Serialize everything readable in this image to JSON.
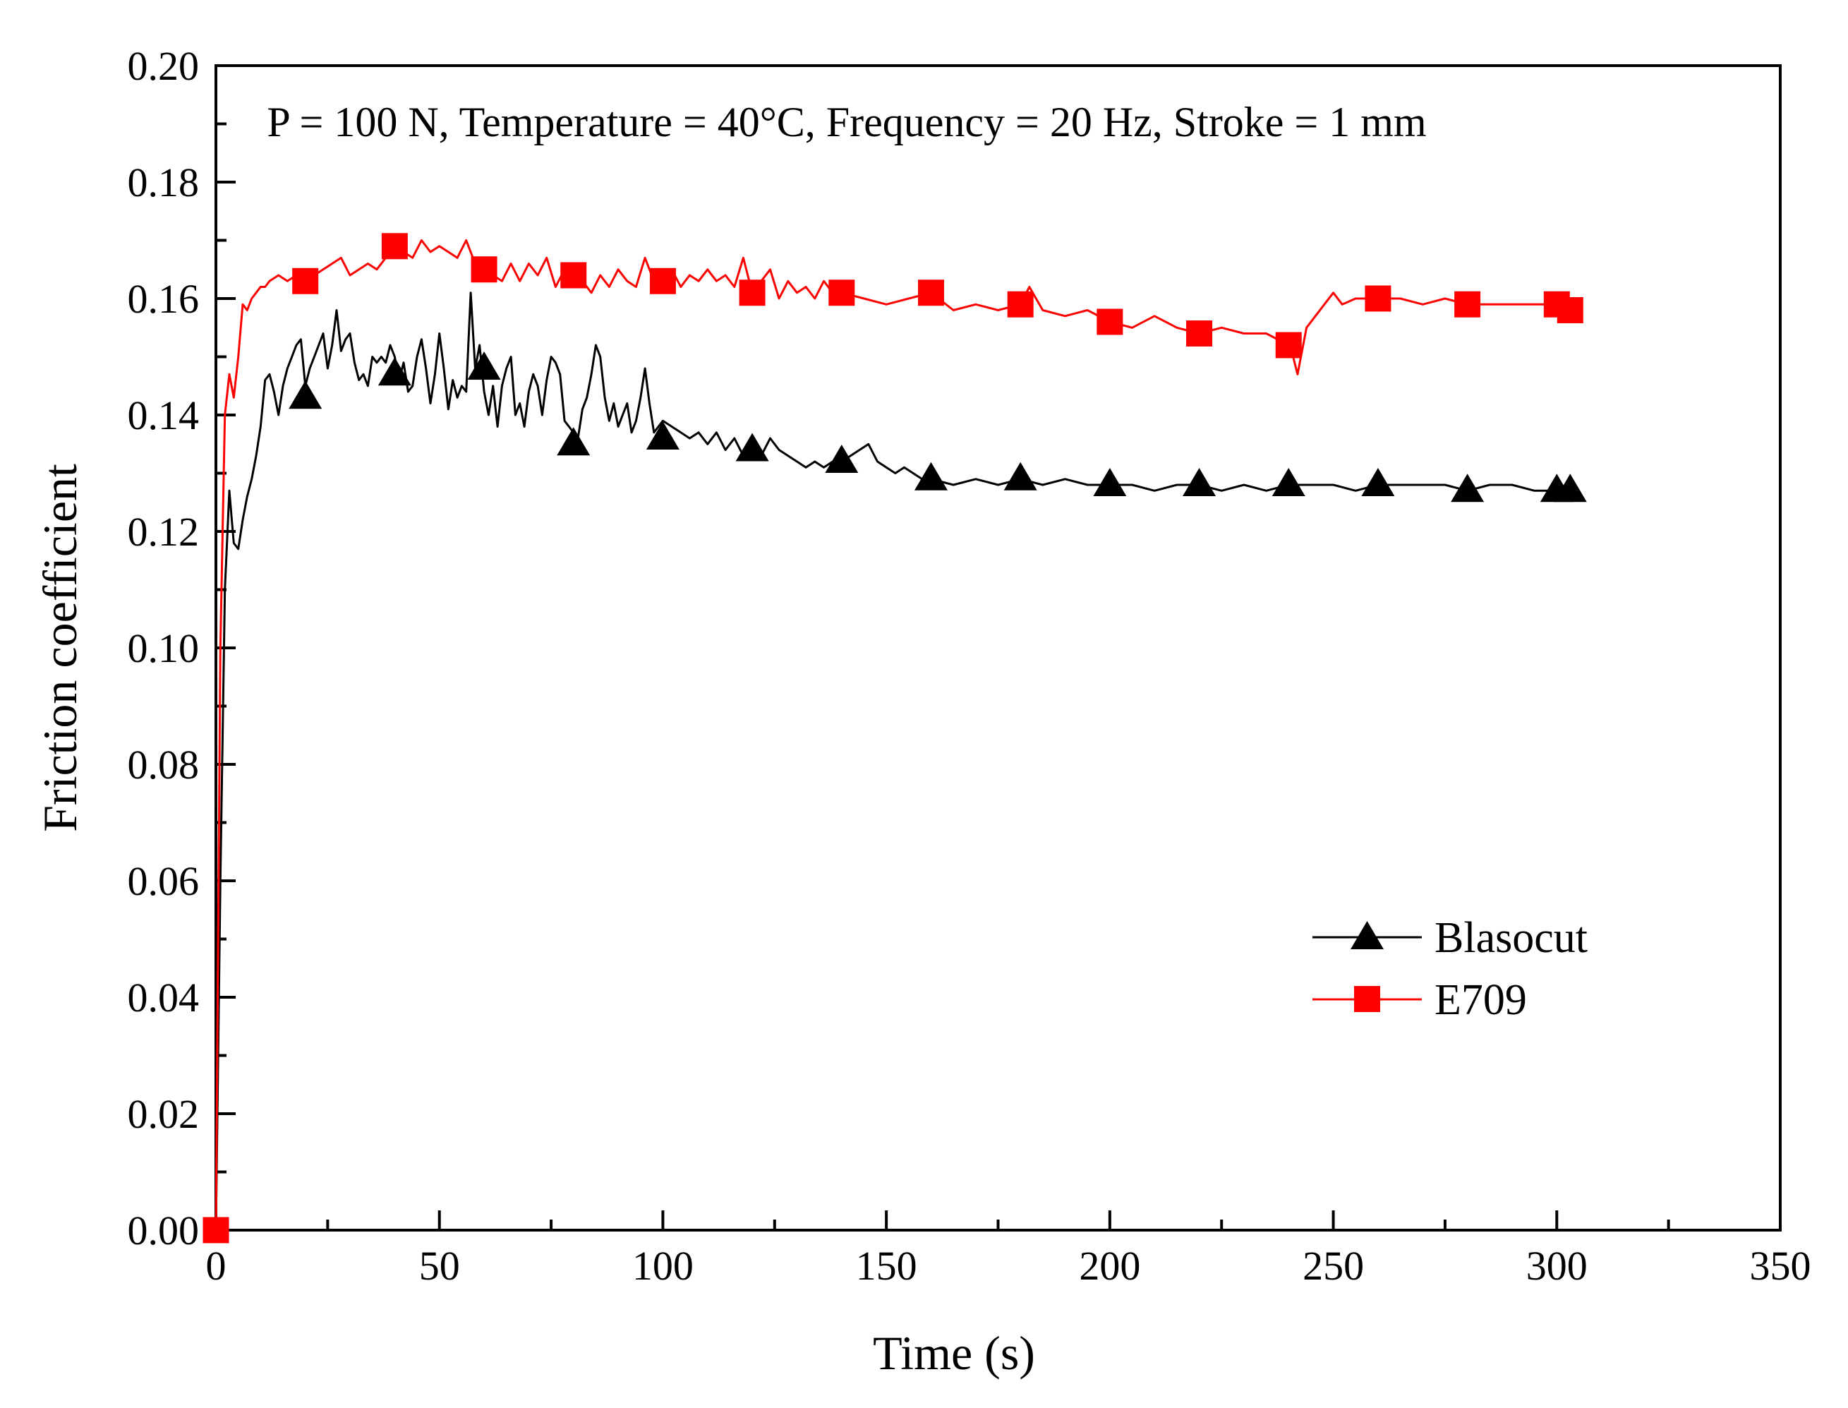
{
  "chart_data": {
    "type": "line",
    "annotation": "P = 100 N, Temperature = 40°C, Frequency = 20 Hz, Stroke = 1 mm",
    "xlabel": "Time (s)",
    "ylabel": "Friction coefficient",
    "xlim": [
      0,
      350
    ],
    "ylim": [
      0,
      0.2
    ],
    "xticks": [
      "0",
      "50",
      "100",
      "150",
      "200",
      "250",
      "300",
      "350"
    ],
    "yticks": [
      "0.00",
      "0.02",
      "0.04",
      "0.06",
      "0.08",
      "0.10",
      "0.12",
      "0.14",
      "0.16",
      "0.18",
      "0.20"
    ],
    "legend_position": "bottom-right",
    "series": [
      {
        "name": "Blasocut",
        "color": "#000000",
        "marker": "triangle",
        "line": [
          [
            0,
            0
          ],
          [
            1,
            0.06
          ],
          [
            2,
            0.11
          ],
          [
            3,
            0.127
          ],
          [
            4,
            0.118
          ],
          [
            5,
            0.117
          ],
          [
            6,
            0.122
          ],
          [
            7,
            0.126
          ],
          [
            8,
            0.129
          ],
          [
            9,
            0.133
          ],
          [
            10,
            0.138
          ],
          [
            11,
            0.146
          ],
          [
            12,
            0.147
          ],
          [
            13,
            0.144
          ],
          [
            14,
            0.14
          ],
          [
            15,
            0.145
          ],
          [
            16,
            0.148
          ],
          [
            17,
            0.15
          ],
          [
            18,
            0.152
          ],
          [
            19,
            0.153
          ],
          [
            20,
            0.145
          ],
          [
            21,
            0.148
          ],
          [
            22,
            0.15
          ],
          [
            23,
            0.152
          ],
          [
            24,
            0.154
          ],
          [
            25,
            0.148
          ],
          [
            26,
            0.152
          ],
          [
            27,
            0.158
          ],
          [
            28,
            0.151
          ],
          [
            29,
            0.153
          ],
          [
            30,
            0.154
          ],
          [
            31,
            0.149
          ],
          [
            32,
            0.146
          ],
          [
            33,
            0.147
          ],
          [
            34,
            0.145
          ],
          [
            35,
            0.15
          ],
          [
            36,
            0.149
          ],
          [
            37,
            0.15
          ],
          [
            38,
            0.149
          ],
          [
            39,
            0.152
          ],
          [
            40,
            0.15
          ],
          [
            41,
            0.146
          ],
          [
            42,
            0.149
          ],
          [
            43,
            0.144
          ],
          [
            44,
            0.145
          ],
          [
            45,
            0.15
          ],
          [
            46,
            0.153
          ],
          [
            47,
            0.148
          ],
          [
            48,
            0.142
          ],
          [
            49,
            0.147
          ],
          [
            50,
            0.154
          ],
          [
            51,
            0.148
          ],
          [
            52,
            0.141
          ],
          [
            53,
            0.146
          ],
          [
            54,
            0.143
          ],
          [
            55,
            0.145
          ],
          [
            56,
            0.144
          ],
          [
            57,
            0.161
          ],
          [
            58,
            0.148
          ],
          [
            59,
            0.152
          ],
          [
            60,
            0.144
          ],
          [
            61,
            0.14
          ],
          [
            62,
            0.145
          ],
          [
            63,
            0.138
          ],
          [
            64,
            0.145
          ],
          [
            65,
            0.148
          ],
          [
            66,
            0.15
          ],
          [
            67,
            0.14
          ],
          [
            68,
            0.142
          ],
          [
            69,
            0.138
          ],
          [
            70,
            0.144
          ],
          [
            71,
            0.147
          ],
          [
            72,
            0.145
          ],
          [
            73,
            0.14
          ],
          [
            74,
            0.146
          ],
          [
            75,
            0.15
          ],
          [
            76,
            0.149
          ],
          [
            77,
            0.147
          ],
          [
            78,
            0.139
          ],
          [
            79,
            0.138
          ],
          [
            80,
            0.137
          ],
          [
            81,
            0.136
          ],
          [
            82,
            0.141
          ],
          [
            83,
            0.143
          ],
          [
            84,
            0.147
          ],
          [
            85,
            0.152
          ],
          [
            86,
            0.15
          ],
          [
            87,
            0.143
          ],
          [
            88,
            0.139
          ],
          [
            89,
            0.142
          ],
          [
            90,
            0.138
          ],
          [
            91,
            0.14
          ],
          [
            92,
            0.142
          ],
          [
            93,
            0.137
          ],
          [
            94,
            0.139
          ],
          [
            95,
            0.143
          ],
          [
            96,
            0.148
          ],
          [
            97,
            0.142
          ],
          [
            98,
            0.137
          ],
          [
            99,
            0.138
          ],
          [
            100,
            0.139
          ],
          [
            102,
            0.138
          ],
          [
            104,
            0.137
          ],
          [
            106,
            0.136
          ],
          [
            108,
            0.137
          ],
          [
            110,
            0.135
          ],
          [
            112,
            0.137
          ],
          [
            114,
            0.134
          ],
          [
            116,
            0.136
          ],
          [
            118,
            0.133
          ],
          [
            120,
            0.134
          ],
          [
            122,
            0.133
          ],
          [
            124,
            0.136
          ],
          [
            126,
            0.134
          ],
          [
            128,
            0.133
          ],
          [
            130,
            0.132
          ],
          [
            132,
            0.131
          ],
          [
            134,
            0.132
          ],
          [
            136,
            0.131
          ],
          [
            138,
            0.132
          ],
          [
            140,
            0.132
          ],
          [
            142,
            0.133
          ],
          [
            144,
            0.134
          ],
          [
            146,
            0.135
          ],
          [
            148,
            0.132
          ],
          [
            150,
            0.131
          ],
          [
            152,
            0.13
          ],
          [
            154,
            0.131
          ],
          [
            156,
            0.13
          ],
          [
            158,
            0.129
          ],
          [
            160,
            0.129
          ],
          [
            165,
            0.128
          ],
          [
            170,
            0.129
          ],
          [
            175,
            0.128
          ],
          [
            180,
            0.129
          ],
          [
            185,
            0.128
          ],
          [
            190,
            0.129
          ],
          [
            195,
            0.128
          ],
          [
            200,
            0.128
          ],
          [
            205,
            0.128
          ],
          [
            210,
            0.127
          ],
          [
            215,
            0.128
          ],
          [
            220,
            0.128
          ],
          [
            225,
            0.127
          ],
          [
            230,
            0.128
          ],
          [
            235,
            0.127
          ],
          [
            240,
            0.128
          ],
          [
            245,
            0.128
          ],
          [
            250,
            0.128
          ],
          [
            255,
            0.127
          ],
          [
            260,
            0.128
          ],
          [
            265,
            0.128
          ],
          [
            270,
            0.128
          ],
          [
            275,
            0.128
          ],
          [
            280,
            0.127
          ],
          [
            285,
            0.128
          ],
          [
            290,
            0.128
          ],
          [
            295,
            0.127
          ],
          [
            300,
            0.127
          ],
          [
            303,
            0.127
          ]
        ],
        "markers": [
          [
            20,
            0.143
          ],
          [
            40,
            0.147
          ],
          [
            60,
            0.148
          ],
          [
            80,
            0.135
          ],
          [
            100,
            0.136
          ],
          [
            120,
            0.134
          ],
          [
            140,
            0.132
          ],
          [
            160,
            0.129
          ],
          [
            180,
            0.129
          ],
          [
            200,
            0.128
          ],
          [
            220,
            0.128
          ],
          [
            240,
            0.128
          ],
          [
            260,
            0.128
          ],
          [
            280,
            0.127
          ],
          [
            300,
            0.127
          ],
          [
            303,
            0.127
          ]
        ]
      },
      {
        "name": "E709",
        "color": "#ff0000",
        "marker": "square",
        "line": [
          [
            0,
            0
          ],
          [
            1,
            0.1
          ],
          [
            2,
            0.14
          ],
          [
            3,
            0.147
          ],
          [
            4,
            0.143
          ],
          [
            5,
            0.15
          ],
          [
            6,
            0.159
          ],
          [
            7,
            0.158
          ],
          [
            8,
            0.16
          ],
          [
            9,
            0.161
          ],
          [
            10,
            0.162
          ],
          [
            11,
            0.162
          ],
          [
            12,
            0.163
          ],
          [
            14,
            0.164
          ],
          [
            16,
            0.163
          ],
          [
            18,
            0.164
          ],
          [
            20,
            0.163
          ],
          [
            22,
            0.164
          ],
          [
            24,
            0.165
          ],
          [
            26,
            0.166
          ],
          [
            28,
            0.167
          ],
          [
            30,
            0.164
          ],
          [
            32,
            0.165
          ],
          [
            34,
            0.166
          ],
          [
            36,
            0.165
          ],
          [
            38,
            0.167
          ],
          [
            40,
            0.169
          ],
          [
            42,
            0.168
          ],
          [
            44,
            0.167
          ],
          [
            46,
            0.17
          ],
          [
            48,
            0.168
          ],
          [
            50,
            0.169
          ],
          [
            52,
            0.168
          ],
          [
            54,
            0.167
          ],
          [
            56,
            0.17
          ],
          [
            58,
            0.166
          ],
          [
            60,
            0.165
          ],
          [
            62,
            0.164
          ],
          [
            64,
            0.163
          ],
          [
            66,
            0.166
          ],
          [
            68,
            0.163
          ],
          [
            70,
            0.166
          ],
          [
            72,
            0.164
          ],
          [
            74,
            0.167
          ],
          [
            76,
            0.162
          ],
          [
            78,
            0.165
          ],
          [
            80,
            0.164
          ],
          [
            82,
            0.163
          ],
          [
            84,
            0.161
          ],
          [
            86,
            0.164
          ],
          [
            88,
            0.162
          ],
          [
            90,
            0.165
          ],
          [
            92,
            0.163
          ],
          [
            94,
            0.162
          ],
          [
            96,
            0.167
          ],
          [
            98,
            0.163
          ],
          [
            100,
            0.163
          ],
          [
            102,
            0.165
          ],
          [
            104,
            0.162
          ],
          [
            106,
            0.164
          ],
          [
            108,
            0.163
          ],
          [
            110,
            0.165
          ],
          [
            112,
            0.163
          ],
          [
            114,
            0.164
          ],
          [
            116,
            0.162
          ],
          [
            118,
            0.167
          ],
          [
            120,
            0.161
          ],
          [
            122,
            0.163
          ],
          [
            124,
            0.165
          ],
          [
            126,
            0.16
          ],
          [
            128,
            0.163
          ],
          [
            130,
            0.161
          ],
          [
            132,
            0.162
          ],
          [
            134,
            0.16
          ],
          [
            136,
            0.163
          ],
          [
            138,
            0.161
          ],
          [
            140,
            0.161
          ],
          [
            145,
            0.16
          ],
          [
            150,
            0.159
          ],
          [
            155,
            0.16
          ],
          [
            160,
            0.161
          ],
          [
            165,
            0.158
          ],
          [
            170,
            0.159
          ],
          [
            175,
            0.158
          ],
          [
            180,
            0.159
          ],
          [
            182,
            0.162
          ],
          [
            185,
            0.158
          ],
          [
            190,
            0.157
          ],
          [
            195,
            0.158
          ],
          [
            200,
            0.156
          ],
          [
            205,
            0.155
          ],
          [
            210,
            0.157
          ],
          [
            215,
            0.155
          ],
          [
            220,
            0.154
          ],
          [
            225,
            0.155
          ],
          [
            230,
            0.154
          ],
          [
            235,
            0.154
          ],
          [
            240,
            0.152
          ],
          [
            241,
            0.15
          ],
          [
            242,
            0.147
          ],
          [
            244,
            0.155
          ],
          [
            246,
            0.157
          ],
          [
            248,
            0.159
          ],
          [
            250,
            0.161
          ],
          [
            252,
            0.159
          ],
          [
            255,
            0.16
          ],
          [
            260,
            0.16
          ],
          [
            265,
            0.16
          ],
          [
            270,
            0.159
          ],
          [
            275,
            0.16
          ],
          [
            280,
            0.159
          ],
          [
            285,
            0.159
          ],
          [
            290,
            0.159
          ],
          [
            295,
            0.159
          ],
          [
            300,
            0.159
          ],
          [
            303,
            0.158
          ]
        ],
        "markers": [
          [
            0,
            0
          ],
          [
            20,
            0.163
          ],
          [
            40,
            0.169
          ],
          [
            60,
            0.165
          ],
          [
            80,
            0.164
          ],
          [
            100,
            0.163
          ],
          [
            120,
            0.161
          ],
          [
            140,
            0.161
          ],
          [
            160,
            0.161
          ],
          [
            180,
            0.159
          ],
          [
            200,
            0.156
          ],
          [
            220,
            0.154
          ],
          [
            240,
            0.152
          ],
          [
            260,
            0.16
          ],
          [
            280,
            0.159
          ],
          [
            300,
            0.159
          ],
          [
            303,
            0.158
          ]
        ]
      }
    ]
  }
}
